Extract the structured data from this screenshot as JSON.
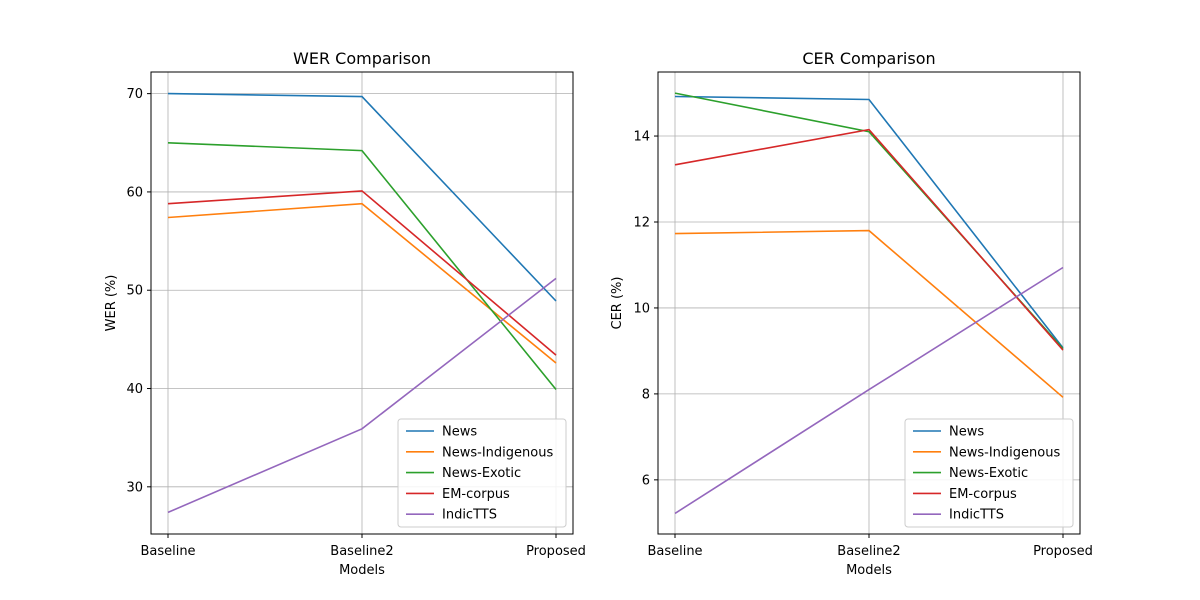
{
  "chart_data": [
    {
      "type": "line",
      "title": "WER Comparison",
      "xlabel": "Models",
      "ylabel": "WER (%)",
      "categories": [
        "Baseline",
        "Baseline2",
        "Proposed"
      ],
      "ylim": [
        25.2,
        72.2
      ],
      "yticks": [
        30,
        40,
        50,
        60,
        70
      ],
      "grid": true,
      "legend_position": "lower-right",
      "series": [
        {
          "name": "News",
          "color": "#1f77b4",
          "values": [
            70.0,
            69.7,
            48.9
          ]
        },
        {
          "name": "News-Indigenous",
          "color": "#ff7f0e",
          "values": [
            57.4,
            58.8,
            42.6
          ]
        },
        {
          "name": "News-Exotic",
          "color": "#2ca02c",
          "values": [
            65.0,
            64.2,
            39.9
          ]
        },
        {
          "name": "EM-corpus",
          "color": "#d62728",
          "values": [
            58.8,
            60.1,
            43.4
          ]
        },
        {
          "name": "IndicTTS",
          "color": "#9467bd",
          "values": [
            27.4,
            35.9,
            51.2
          ]
        }
      ]
    },
    {
      "type": "line",
      "title": "CER Comparison",
      "xlabel": "Models",
      "ylabel": "CER (%)",
      "categories": [
        "Baseline",
        "Baseline2",
        "Proposed"
      ],
      "ylim": [
        4.74,
        15.49
      ],
      "yticks": [
        6,
        8,
        10,
        12,
        14
      ],
      "grid": true,
      "legend_position": "lower-right",
      "series": [
        {
          "name": "News",
          "color": "#1f77b4",
          "values": [
            14.92,
            14.85,
            9.07
          ]
        },
        {
          "name": "News-Indigenous",
          "color": "#ff7f0e",
          "values": [
            11.73,
            11.8,
            7.92
          ]
        },
        {
          "name": "News-Exotic",
          "color": "#2ca02c",
          "values": [
            15.0,
            14.1,
            9.05
          ]
        },
        {
          "name": "EM-corpus",
          "color": "#d62728",
          "values": [
            13.33,
            14.15,
            9.02
          ]
        },
        {
          "name": "IndicTTS",
          "color": "#9467bd",
          "values": [
            5.22,
            8.1,
            10.94
          ]
        }
      ]
    }
  ]
}
